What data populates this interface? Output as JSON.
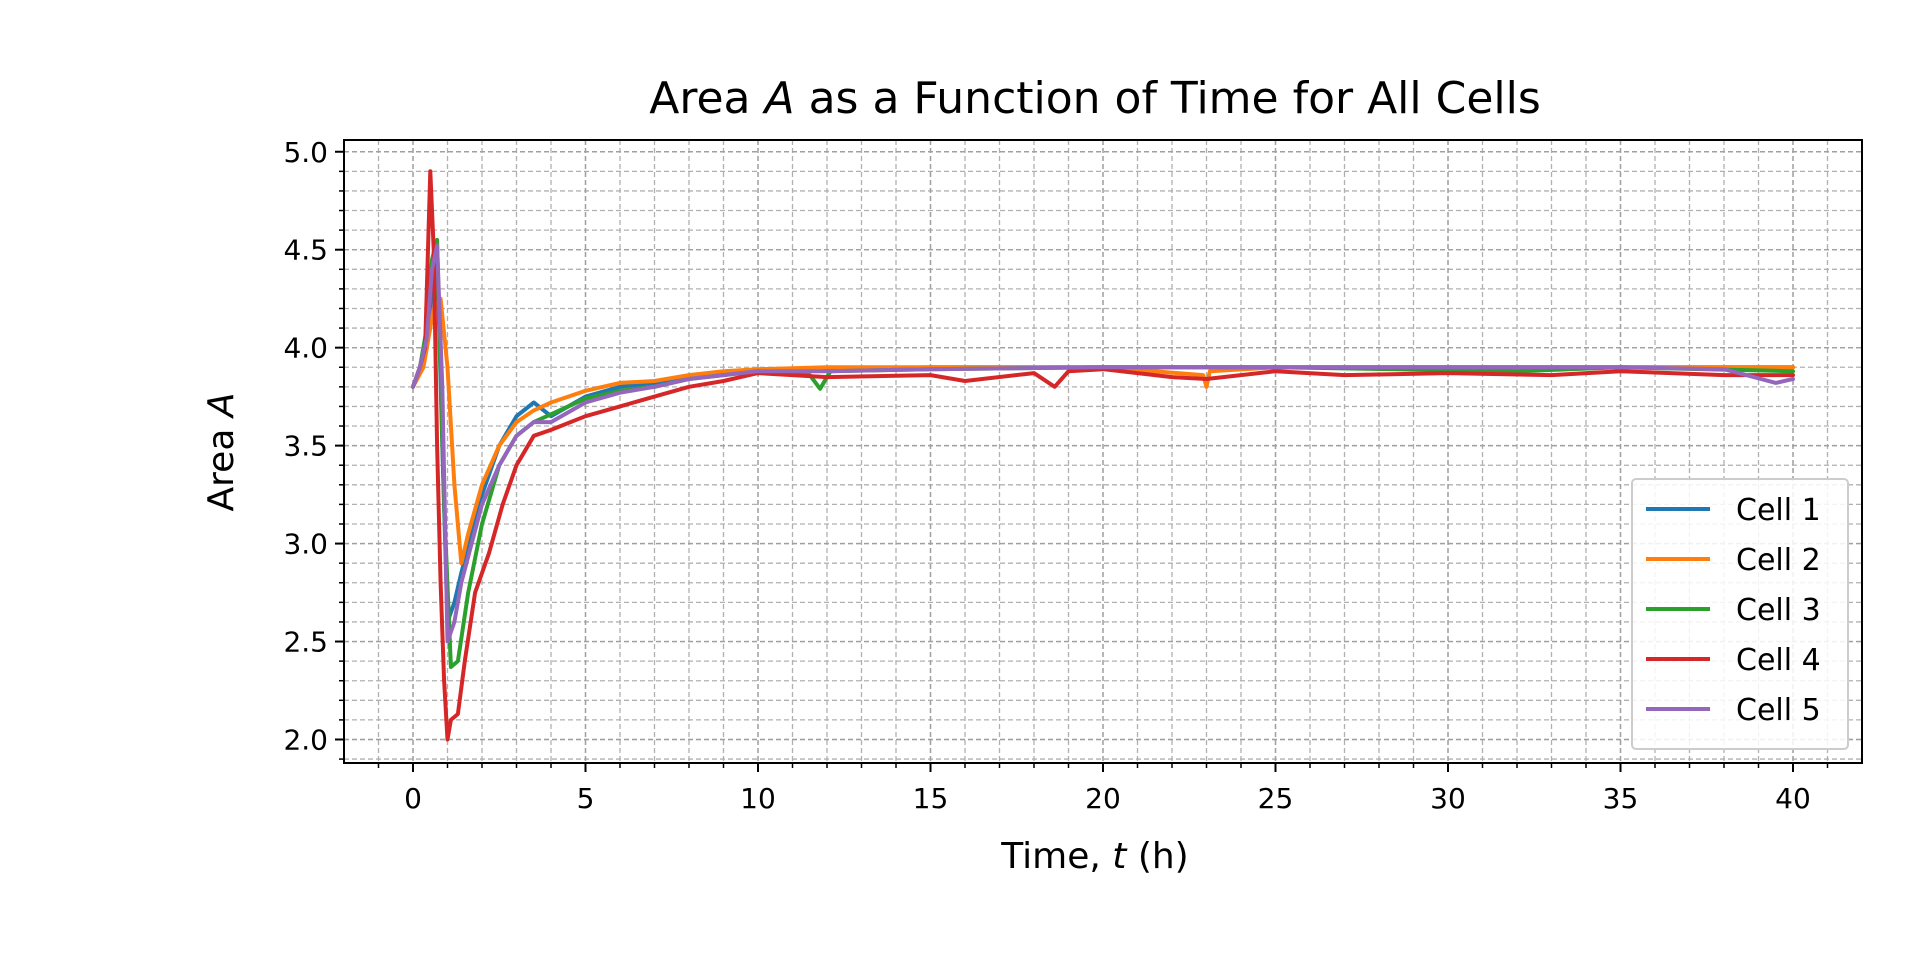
{
  "chart_data": {
    "type": "line",
    "title_prefix": "Area ",
    "title_var": "A",
    "title_suffix": " as a Function of Time for All Cells",
    "xlabel_prefix": "Time, ",
    "xlabel_var": "t",
    "xlabel_suffix": " (h)",
    "ylabel_prefix": "Area ",
    "ylabel_var": "A",
    "xlim": [
      -2,
      42
    ],
    "ylim": [
      1.88,
      5.06
    ],
    "xticks": [
      0,
      5,
      10,
      15,
      20,
      25,
      30,
      35,
      40
    ],
    "xtick_labels": [
      "0",
      "5",
      "10",
      "15",
      "20",
      "25",
      "30",
      "35",
      "40"
    ],
    "yticks": [
      2.0,
      2.5,
      3.0,
      3.5,
      4.0,
      4.5,
      5.0
    ],
    "ytick_labels": [
      "2.0",
      "2.5",
      "3.0",
      "3.5",
      "4.0",
      "4.5",
      "5.0"
    ],
    "grid": true,
    "minor_grid": true,
    "legend_position": "lower-right",
    "series": [
      {
        "name": "Cell 1",
        "color": "#1f77b4",
        "x": [
          0,
          0.2,
          0.4,
          0.55,
          0.7,
          0.85,
          1.0,
          1.2,
          1.4,
          1.7,
          2.0,
          2.5,
          3.0,
          3.5,
          4.0,
          5.0,
          6.0,
          7.0,
          8.0,
          9.0,
          10.0,
          12.0,
          15.0,
          20.0,
          25.0,
          30.0,
          35.0,
          40.0
        ],
        "y": [
          3.8,
          3.9,
          4.0,
          4.3,
          4.5,
          3.5,
          2.6,
          2.7,
          2.85,
          3.05,
          3.25,
          3.5,
          3.65,
          3.72,
          3.65,
          3.75,
          3.8,
          3.82,
          3.85,
          3.87,
          3.88,
          3.89,
          3.9,
          3.9,
          3.9,
          3.9,
          3.9,
          3.9
        ]
      },
      {
        "name": "Cell 2",
        "color": "#ff7f0e",
        "x": [
          0,
          0.3,
          0.6,
          0.8,
          1.0,
          1.2,
          1.4,
          1.6,
          2.0,
          2.5,
          3.0,
          3.5,
          4.0,
          5.0,
          6.0,
          7.0,
          8.0,
          9.0,
          10.0,
          12.0,
          15.0,
          20.0,
          22.9,
          23.0,
          23.1,
          25.0,
          30.0,
          35.0,
          40.0
        ],
        "y": [
          3.8,
          3.9,
          4.2,
          4.25,
          3.9,
          3.3,
          2.9,
          3.05,
          3.3,
          3.5,
          3.62,
          3.68,
          3.72,
          3.78,
          3.82,
          3.83,
          3.86,
          3.88,
          3.89,
          3.9,
          3.9,
          3.9,
          3.86,
          3.8,
          3.88,
          3.9,
          3.9,
          3.9,
          3.9
        ]
      },
      {
        "name": "Cell 3",
        "color": "#2ca02c",
        "x": [
          0,
          0.2,
          0.4,
          0.55,
          0.7,
          0.9,
          1.1,
          1.3,
          1.6,
          2.0,
          2.5,
          3.0,
          3.5,
          4.0,
          5.0,
          6.0,
          7.0,
          8.0,
          9.0,
          10.0,
          11.5,
          11.8,
          12.1,
          15.0,
          20.0,
          25.0,
          32.0,
          35.0,
          40.0
        ],
        "y": [
          3.8,
          3.9,
          4.1,
          4.45,
          4.55,
          3.2,
          2.37,
          2.4,
          2.75,
          3.1,
          3.4,
          3.55,
          3.62,
          3.66,
          3.74,
          3.78,
          3.8,
          3.84,
          3.86,
          3.88,
          3.86,
          3.79,
          3.88,
          3.89,
          3.9,
          3.9,
          3.88,
          3.9,
          3.88
        ]
      },
      {
        "name": "Cell 4",
        "color": "#d62728",
        "x": [
          0,
          0.2,
          0.35,
          0.5,
          0.6,
          0.7,
          0.8,
          0.9,
          1.0,
          1.1,
          1.3,
          1.5,
          1.8,
          2.2,
          2.6,
          3.0,
          3.5,
          4.0,
          5.0,
          6.0,
          7.0,
          8.0,
          9.0,
          10.0,
          12.0,
          15.0,
          16.0,
          18.0,
          18.6,
          19.0,
          20.0,
          22.0,
          23.0,
          25.0,
          27.0,
          30.0,
          33.0,
          35.0,
          38.0,
          40.0
        ],
        "y": [
          3.8,
          3.9,
          4.0,
          4.9,
          4.5,
          3.5,
          2.8,
          2.3,
          2.0,
          2.1,
          2.13,
          2.4,
          2.75,
          2.95,
          3.2,
          3.4,
          3.55,
          3.58,
          3.65,
          3.7,
          3.75,
          3.8,
          3.83,
          3.87,
          3.85,
          3.86,
          3.83,
          3.87,
          3.8,
          3.88,
          3.89,
          3.85,
          3.84,
          3.88,
          3.86,
          3.87,
          3.86,
          3.88,
          3.86,
          3.86
        ]
      },
      {
        "name": "Cell 5",
        "color": "#9467bd",
        "x": [
          0,
          0.2,
          0.4,
          0.55,
          0.7,
          0.85,
          1.0,
          1.2,
          1.4,
          1.7,
          2.0,
          2.5,
          3.0,
          3.5,
          4.0,
          5.0,
          6.0,
          7.0,
          8.0,
          9.0,
          10.0,
          12.0,
          15.0,
          20.0,
          25.0,
          30.0,
          35.0,
          38.0,
          39.5,
          40.0
        ],
        "y": [
          3.8,
          3.9,
          4.05,
          4.4,
          4.52,
          3.8,
          2.5,
          2.6,
          2.8,
          3.0,
          3.2,
          3.4,
          3.55,
          3.62,
          3.62,
          3.72,
          3.77,
          3.8,
          3.84,
          3.86,
          3.88,
          3.88,
          3.89,
          3.9,
          3.9,
          3.9,
          3.9,
          3.89,
          3.82,
          3.84
        ]
      }
    ]
  }
}
